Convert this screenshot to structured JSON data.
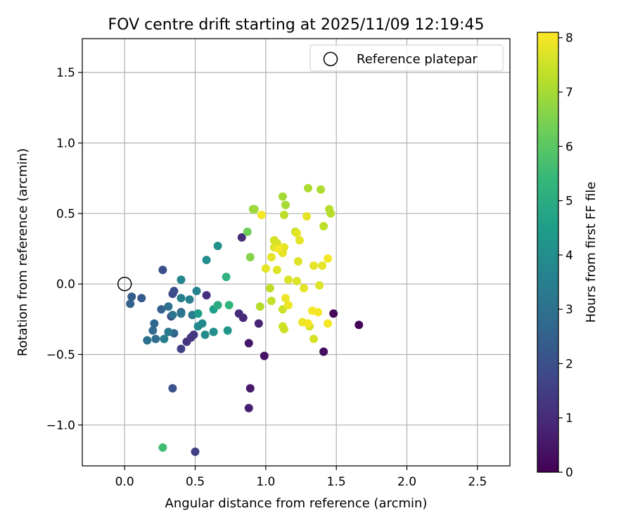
{
  "chart_data": {
    "type": "scatter",
    "title": "FOV centre drift starting at 2025/11/09 12:19:45",
    "xlabel": "Angular distance from reference (arcmin)",
    "ylabel": "Rotation from reference (arcmin)",
    "xlim": [
      -0.3,
      2.73
    ],
    "ylim": [
      -1.29,
      1.74
    ],
    "xticks": [
      0.0,
      0.5,
      1.0,
      1.5,
      2.0,
      2.5
    ],
    "yticks": [
      -1.0,
      -0.5,
      0.0,
      0.5,
      1.0,
      1.5
    ],
    "xtick_labels": [
      "0.0",
      "0.5",
      "1.0",
      "1.5",
      "2.0",
      "2.5"
    ],
    "ytick_labels": [
      "−1.0",
      "−0.5",
      "0.0",
      "0.5",
      "1.0",
      "1.5"
    ],
    "grid": true,
    "legend": {
      "position": "top-right",
      "entries": [
        "Reference platepar"
      ]
    },
    "reference_point": {
      "label": "Reference platepar",
      "x": 0.0,
      "y": 0.0
    },
    "colorbar": {
      "label": "Hours from first FF file",
      "range": [
        0,
        8.1
      ],
      "ticks": [
        0,
        1,
        2,
        3,
        4,
        5,
        6,
        7,
        8
      ],
      "tick_labels": [
        "0",
        "1",
        "2",
        "3",
        "4",
        "5",
        "6",
        "7",
        "8"
      ],
      "colormap": "viridis",
      "colormap_stops": [
        "#440154",
        "#482878",
        "#3e4989",
        "#31688e",
        "#26828e",
        "#1f9e89",
        "#35b779",
        "#6ece58",
        "#b5de2b",
        "#fde725"
      ]
    },
    "points": [
      {
        "x": 1.66,
        "y": -0.29,
        "c": 0.1
      },
      {
        "x": 1.48,
        "y": -0.21,
        "c": 0.2
      },
      {
        "x": 1.41,
        "y": -0.48,
        "c": 0.3
      },
      {
        "x": 0.99,
        "y": -0.51,
        "c": 0.4
      },
      {
        "x": 0.88,
        "y": -0.42,
        "c": 0.5
      },
      {
        "x": 0.89,
        "y": -0.74,
        "c": 0.6
      },
      {
        "x": 0.88,
        "y": -0.88,
        "c": 0.7
      },
      {
        "x": 0.95,
        "y": -0.28,
        "c": 0.8
      },
      {
        "x": 0.84,
        "y": -0.24,
        "c": 0.9
      },
      {
        "x": 0.81,
        "y": -0.21,
        "c": 1.0
      },
      {
        "x": 0.83,
        "y": 0.33,
        "c": 1.0
      },
      {
        "x": 0.58,
        "y": -0.08,
        "c": 1.1
      },
      {
        "x": 0.44,
        "y": -0.41,
        "c": 1.2
      },
      {
        "x": 0.47,
        "y": -0.38,
        "c": 1.3
      },
      {
        "x": 0.49,
        "y": -0.36,
        "c": 1.4
      },
      {
        "x": 0.5,
        "y": -1.19,
        "c": 1.5
      },
      {
        "x": 0.4,
        "y": -0.46,
        "c": 1.6
      },
      {
        "x": 0.33,
        "y": -0.23,
        "c": 1.7
      },
      {
        "x": 0.34,
        "y": -0.07,
        "c": 1.8
      },
      {
        "x": 0.35,
        "y": -0.05,
        "c": 1.9
      },
      {
        "x": 0.27,
        "y": 0.1,
        "c": 2.0
      },
      {
        "x": 0.34,
        "y": -0.74,
        "c": 2.1
      },
      {
        "x": 0.4,
        "y": -0.2,
        "c": 2.2
      },
      {
        "x": 0.12,
        "y": -0.1,
        "c": 2.3
      },
      {
        "x": 0.05,
        "y": -0.09,
        "c": 2.4
      },
      {
        "x": 0.04,
        "y": -0.14,
        "c": 2.5
      },
      {
        "x": 0.26,
        "y": -0.18,
        "c": 2.5
      },
      {
        "x": 0.35,
        "y": -0.35,
        "c": 2.6
      },
      {
        "x": 0.21,
        "y": -0.28,
        "c": 2.7
      },
      {
        "x": 0.2,
        "y": -0.33,
        "c": 2.8
      },
      {
        "x": 0.22,
        "y": -0.39,
        "c": 2.9
      },
      {
        "x": 0.16,
        "y": -0.4,
        "c": 3.0
      },
      {
        "x": 0.31,
        "y": -0.16,
        "c": 3.0
      },
      {
        "x": 0.34,
        "y": -0.22,
        "c": 3.1
      },
      {
        "x": 0.4,
        "y": -0.21,
        "c": 3.2
      },
      {
        "x": 0.48,
        "y": -0.22,
        "c": 3.3
      },
      {
        "x": 0.31,
        "y": -0.34,
        "c": 3.3
      },
      {
        "x": 0.28,
        "y": -0.39,
        "c": 3.4
      },
      {
        "x": 0.4,
        "y": -0.1,
        "c": 3.5
      },
      {
        "x": 0.46,
        "y": -0.11,
        "c": 3.6
      },
      {
        "x": 0.51,
        "y": -0.05,
        "c": 3.6
      },
      {
        "x": 0.4,
        "y": 0.03,
        "c": 3.7
      },
      {
        "x": 0.52,
        "y": -0.3,
        "c": 3.8
      },
      {
        "x": 0.55,
        "y": -0.28,
        "c": 3.8
      },
      {
        "x": 0.57,
        "y": -0.36,
        "c": 3.9
      },
      {
        "x": 0.63,
        "y": -0.34,
        "c": 4.0
      },
      {
        "x": 0.58,
        "y": 0.17,
        "c": 4.0
      },
      {
        "x": 0.66,
        "y": 0.27,
        "c": 4.1
      },
      {
        "x": 0.73,
        "y": -0.33,
        "c": 4.3
      },
      {
        "x": 0.52,
        "y": -0.21,
        "c": 4.4
      },
      {
        "x": 0.63,
        "y": -0.18,
        "c": 4.5
      },
      {
        "x": 0.66,
        "y": -0.15,
        "c": 5.0
      },
      {
        "x": 0.72,
        "y": 0.05,
        "c": 5.2
      },
      {
        "x": 0.74,
        "y": -0.15,
        "c": 5.3
      },
      {
        "x": 0.27,
        "y": -1.16,
        "c": 5.6
      },
      {
        "x": 0.87,
        "y": 0.37,
        "c": 6.3
      },
      {
        "x": 0.89,
        "y": 0.19,
        "c": 6.6
      },
      {
        "x": 0.91,
        "y": 0.53,
        "c": 6.8
      },
      {
        "x": 0.92,
        "y": 0.53,
        "c": 6.9
      },
      {
        "x": 1.12,
        "y": 0.62,
        "c": 7.0
      },
      {
        "x": 1.14,
        "y": 0.56,
        "c": 7.0
      },
      {
        "x": 1.3,
        "y": 0.68,
        "c": 7.1
      },
      {
        "x": 1.39,
        "y": 0.67,
        "c": 7.1
      },
      {
        "x": 1.45,
        "y": 0.53,
        "c": 7.2
      },
      {
        "x": 1.46,
        "y": 0.5,
        "c": 7.2
      },
      {
        "x": 1.41,
        "y": 0.41,
        "c": 7.3
      },
      {
        "x": 1.21,
        "y": 0.37,
        "c": 7.3
      },
      {
        "x": 1.13,
        "y": 0.49,
        "c": 7.3
      },
      {
        "x": 0.96,
        "y": -0.16,
        "c": 7.2
      },
      {
        "x": 1.03,
        "y": -0.03,
        "c": 7.3
      },
      {
        "x": 1.04,
        "y": -0.12,
        "c": 7.4
      },
      {
        "x": 1.12,
        "y": -0.18,
        "c": 7.5
      },
      {
        "x": 1.12,
        "y": -0.3,
        "c": 7.5
      },
      {
        "x": 1.13,
        "y": -0.32,
        "c": 7.5
      },
      {
        "x": 1.31,
        "y": -0.3,
        "c": 7.6
      },
      {
        "x": 1.34,
        "y": -0.39,
        "c": 7.6
      },
      {
        "x": 1.06,
        "y": 0.31,
        "c": 7.6
      },
      {
        "x": 1.08,
        "y": 0.29,
        "c": 7.6
      },
      {
        "x": 1.06,
        "y": 0.26,
        "c": 7.7
      },
      {
        "x": 1.08,
        "y": 0.1,
        "c": 7.7
      },
      {
        "x": 1.23,
        "y": 0.16,
        "c": 7.7
      },
      {
        "x": 1.16,
        "y": 0.03,
        "c": 7.7
      },
      {
        "x": 1.22,
        "y": 0.02,
        "c": 7.7
      },
      {
        "x": 1.38,
        "y": -0.01,
        "c": 7.7
      },
      {
        "x": 1.22,
        "y": 0.36,
        "c": 7.8
      },
      {
        "x": 1.24,
        "y": 0.31,
        "c": 7.8
      },
      {
        "x": 1.29,
        "y": 0.48,
        "c": 7.8
      },
      {
        "x": 1.0,
        "y": 0.11,
        "c": 7.8
      },
      {
        "x": 1.04,
        "y": 0.19,
        "c": 7.8
      },
      {
        "x": 1.12,
        "y": 0.22,
        "c": 7.8
      },
      {
        "x": 1.13,
        "y": 0.26,
        "c": 7.8
      },
      {
        "x": 1.34,
        "y": 0.13,
        "c": 7.8
      },
      {
        "x": 1.4,
        "y": 0.13,
        "c": 7.8
      },
      {
        "x": 1.27,
        "y": -0.03,
        "c": 7.8
      },
      {
        "x": 1.14,
        "y": -0.1,
        "c": 7.9
      },
      {
        "x": 1.16,
        "y": -0.15,
        "c": 7.9
      },
      {
        "x": 1.26,
        "y": -0.27,
        "c": 7.9
      },
      {
        "x": 1.3,
        "y": -0.28,
        "c": 8.0
      },
      {
        "x": 1.33,
        "y": -0.19,
        "c": 8.0
      },
      {
        "x": 1.37,
        "y": -0.2,
        "c": 8.0
      },
      {
        "x": 1.44,
        "y": -0.28,
        "c": 8.0
      },
      {
        "x": 1.44,
        "y": 0.18,
        "c": 8.0
      },
      {
        "x": 0.97,
        "y": 0.49,
        "c": 8.0
      },
      {
        "x": 1.09,
        "y": 0.25,
        "c": 8.0
      }
    ]
  }
}
